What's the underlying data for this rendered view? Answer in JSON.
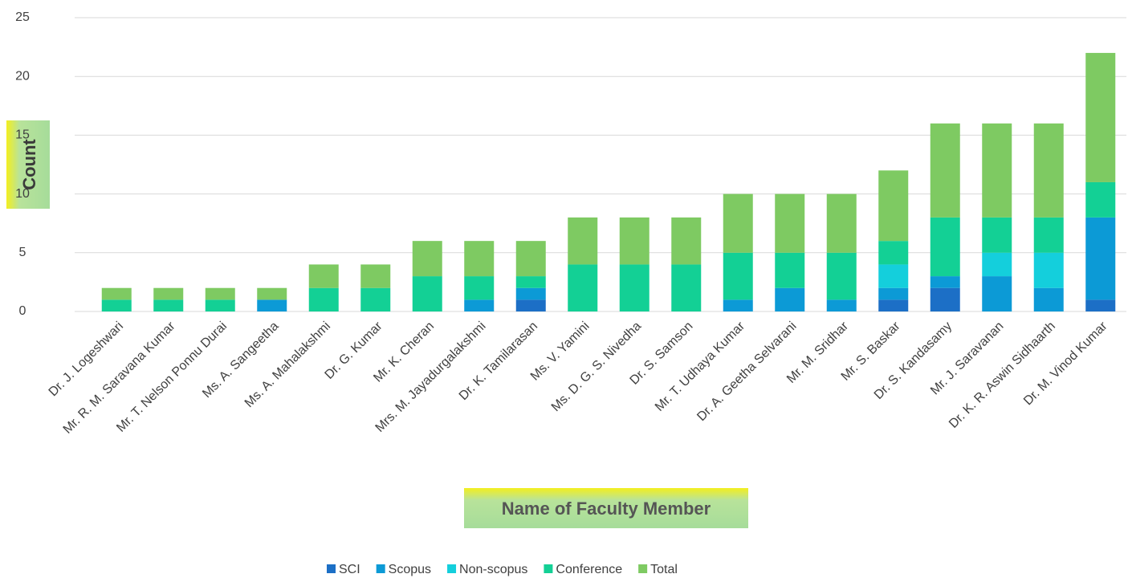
{
  "chart_data": {
    "type": "bar",
    "stacked": true,
    "x_label": "Name of Faculty Member",
    "y_label": "Count",
    "categories": [
      "Dr. J. Logeshwari",
      "Mr. R. M. Saravana Kumar",
      "Mr. T. Nelson Ponnu Durai",
      "Ms. A. Sangeetha",
      "Ms. A. Mahalakshmi",
      "Dr. G. Kumar",
      "Mr. K. Cheran",
      "Mrs. M. Jayadurgalakshmi",
      "Dr. K. Tamilarasan",
      "Ms. V. Yamini",
      "Ms. D. G. S. Nivedha",
      "Dr. S. Samson",
      "Mr. T. Udhaya Kumar",
      "Dr. A. Geetha Selvarani",
      "Mr. M. Sridhar",
      "Mr. S. Baskar",
      "Dr. S. Kandasamy",
      "Mr. J. Saravanan",
      "Dr. K. R. Aswin Sidhaarth",
      "Dr. M. Vinod Kumar"
    ],
    "series": [
      {
        "name": "SCI",
        "color": "#1c6fc6",
        "values": [
          0,
          0,
          0,
          0,
          0,
          0,
          0,
          0,
          1,
          0,
          0,
          0,
          0,
          0,
          0,
          1,
          2,
          0,
          0,
          1
        ]
      },
      {
        "name": "Scopus",
        "color": "#0c9ad6",
        "values": [
          0,
          0,
          0,
          1,
          0,
          0,
          0,
          1,
          1,
          0,
          0,
          0,
          1,
          2,
          1,
          1,
          1,
          3,
          2,
          7
        ]
      },
      {
        "name": "Non-scopus",
        "color": "#14cfdc",
        "values": [
          0,
          0,
          0,
          0,
          0,
          0,
          0,
          0,
          0,
          0,
          0,
          0,
          0,
          0,
          0,
          2,
          0,
          2,
          3,
          0
        ]
      },
      {
        "name": "Conference",
        "color": "#13d095",
        "values": [
          1,
          1,
          1,
          0,
          2,
          2,
          3,
          2,
          1,
          4,
          4,
          4,
          4,
          3,
          4,
          2,
          5,
          3,
          3,
          3
        ]
      },
      {
        "name": "Total",
        "color": "#7eca62",
        "values": [
          1,
          1,
          1,
          1,
          2,
          2,
          3,
          3,
          3,
          4,
          4,
          4,
          5,
          5,
          5,
          6,
          8,
          8,
          8,
          11
        ]
      }
    ],
    "ylim": [
      0,
      25
    ],
    "yticks": [
      0,
      5,
      10,
      15,
      20,
      25
    ],
    "grid": true,
    "legend": "bottom"
  }
}
